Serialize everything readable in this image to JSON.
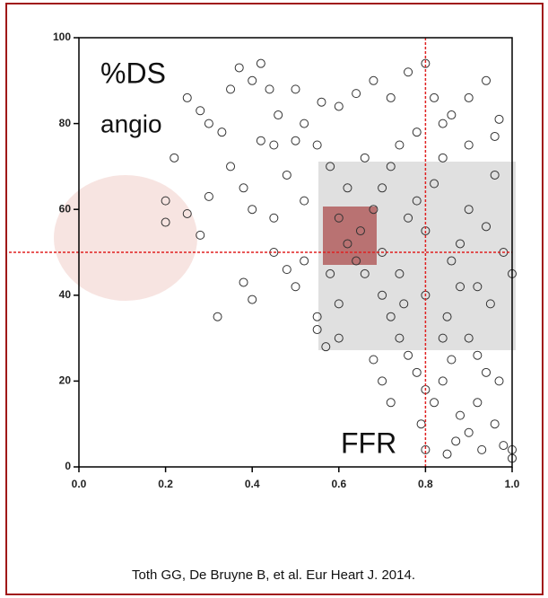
{
  "chart_data": {
    "type": "scatter",
    "annotations": [
      "%DS",
      "angio",
      "FFR"
    ],
    "source": "Toth GG, De Bruyne B, et al. Eur Heart J. 2014.",
    "x": [
      0.22,
      0.25,
      0.28,
      0.3,
      0.33,
      0.35,
      0.37,
      0.4,
      0.42,
      0.44,
      0.46,
      0.5,
      0.52,
      0.56,
      0.6,
      0.64,
      0.68,
      0.72,
      0.76,
      0.8,
      0.82,
      0.86,
      0.9,
      0.94,
      0.97,
      0.35,
      0.38,
      0.3,
      0.4,
      0.45,
      0.2,
      0.2,
      0.25,
      0.28,
      0.32,
      0.38,
      0.4,
      0.45,
      0.48,
      0.5,
      0.52,
      0.55,
      0.55,
      0.57,
      0.6,
      0.58,
      0.62,
      0.65,
      0.68,
      0.7,
      0.72,
      0.74,
      0.76,
      0.78,
      0.8,
      0.82,
      0.84,
      0.86,
      0.88,
      0.9,
      0.92,
      0.94,
      0.96,
      0.98,
      1,
      0.66,
      0.7,
      0.72,
      0.74,
      0.76,
      0.78,
      0.8,
      0.82,
      0.84,
      0.86,
      0.88,
      0.9,
      0.92,
      0.94,
      0.96,
      0.98,
      1,
      1,
      0.85,
      0.8,
      0.72,
      0.7,
      0.68,
      0.75,
      0.85,
      0.9,
      0.95,
      0.88,
      0.62,
      0.58,
      0.55,
      0.5,
      0.45,
      0.42,
      0.48,
      0.52,
      0.6,
      0.64,
      0.66,
      0.78,
      0.84,
      0.9,
      0.96,
      0.7,
      0.74,
      0.8,
      0.84,
      0.92,
      0.97,
      0.79,
      0.87,
      0.93,
      0.6
    ],
    "values": [
      72,
      86,
      83,
      80,
      78,
      88,
      93,
      90,
      94,
      88,
      82,
      88,
      80,
      85,
      84,
      87,
      90,
      86,
      92,
      94,
      86,
      82,
      86,
      90,
      81,
      70,
      65,
      63,
      60,
      58,
      62,
      57,
      59,
      54,
      35,
      43,
      39,
      50,
      46,
      42,
      48,
      35,
      32,
      28,
      38,
      45,
      52,
      55,
      60,
      65,
      70,
      75,
      58,
      62,
      55,
      66,
      72,
      48,
      52,
      60,
      42,
      56,
      68,
      50,
      45,
      45,
      40,
      35,
      30,
      26,
      22,
      18,
      15,
      20,
      25,
      12,
      8,
      15,
      22,
      10,
      5,
      2,
      4,
      3,
      4,
      15,
      20,
      25,
      38,
      35,
      30,
      38,
      42,
      65,
      70,
      75,
      76,
      75,
      76,
      68,
      62,
      58,
      48,
      72,
      78,
      80,
      75,
      77,
      50,
      45,
      40,
      30,
      26,
      20,
      10,
      6,
      4,
      30
    ],
    "color": "#333333",
    "reference_lines": [
      {
        "axis": "x",
        "value": 0.8
      },
      {
        "axis": "y",
        "value": 50
      }
    ],
    "reference_color": "#e02020",
    "xlim": [
      0,
      1
    ],
    "ylim": [
      0,
      100
    ],
    "xticks": [
      {
        "value": 0,
        "label": "0.0"
      },
      {
        "value": 0.2,
        "label": "0.2"
      },
      {
        "value": 0.4,
        "label": "0.4"
      },
      {
        "value": 0.6,
        "label": "0.6"
      },
      {
        "value": 0.8,
        "label": "0.8"
      },
      {
        "value": 1,
        "label": "1.0"
      }
    ],
    "yticks": [
      0,
      20,
      40,
      60,
      80,
      100
    ]
  }
}
